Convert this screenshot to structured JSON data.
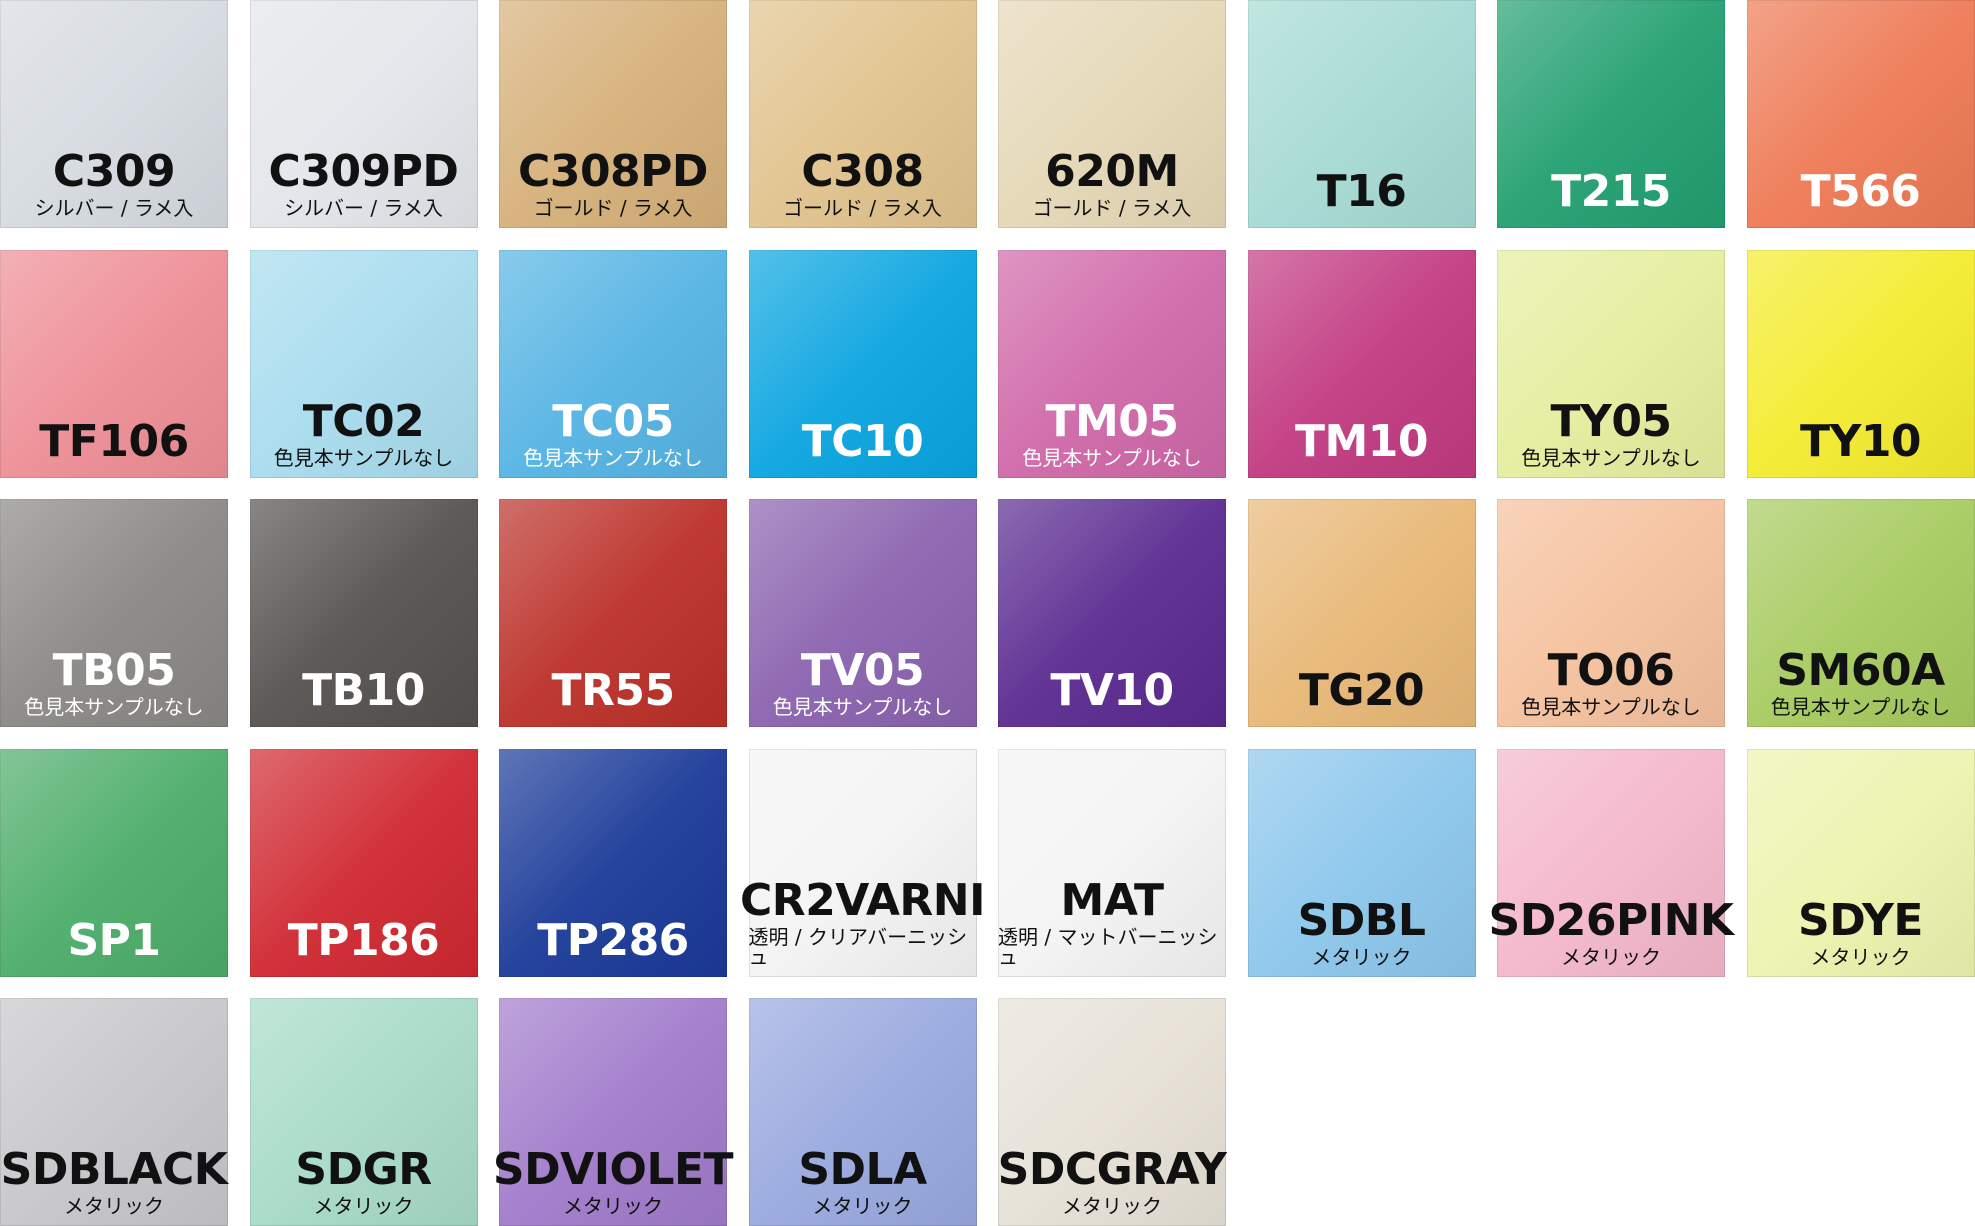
{
  "swatches": [
    {
      "code": "C309",
      "sub": "シルバー / ラメ入",
      "color": "#d6dbe1",
      "text_color": "#111111"
    },
    {
      "code": "C309PD",
      "sub": "シルバー / ラメ入",
      "color": "#e3e6ea",
      "text_color": "#111111"
    },
    {
      "code": "C308PD",
      "sub": "ゴールド / ラメ入",
      "color": "#d6b079",
      "text_color": "#111111"
    },
    {
      "code": "C308",
      "sub": "ゴールド / ラメ入",
      "color": "#e1c38d",
      "text_color": "#111111"
    },
    {
      "code": "620M",
      "sub": "ゴールド / ラメ入",
      "color": "#e5d8b7",
      "text_color": "#111111"
    },
    {
      "code": "T16",
      "color": "#a6dbd3",
      "text_color": "#111111"
    },
    {
      "code": "T215",
      "color": "#22a070",
      "text_color": "#ffffff"
    },
    {
      "code": "T566",
      "color": "#ee7a55",
      "text_color": "#ffffff"
    },
    {
      "code": "TF106",
      "color": "#ee8e96",
      "text_color": "#111111"
    },
    {
      "code": "TC02",
      "sub": "色見本サンプルなし",
      "color": "#a8dcee",
      "text_color": "#111111"
    },
    {
      "code": "TC05",
      "sub": "色見本サンプルなし",
      "color": "#55b4e4",
      "text_color": "#ffffff"
    },
    {
      "code": "TC10",
      "color": "#0aa5e0",
      "text_color": "#ffffff"
    },
    {
      "code": "TM05",
      "sub": "色見本サンプルなし",
      "color": "#d068a9",
      "text_color": "#ffffff"
    },
    {
      "code": "TM10",
      "color": "#c23a82",
      "text_color": "#ffffff"
    },
    {
      "code": "TY05",
      "sub": "色見本サンプルなし",
      "color": "#e5ee9e",
      "text_color": "#111111"
    },
    {
      "code": "TY10",
      "color": "#f4ec2e",
      "text_color": "#111111"
    },
    {
      "code": "TB05",
      "sub": "色見本サンプルなし",
      "color": "#8a8885",
      "text_color": "#ffffff"
    },
    {
      "code": "TB10",
      "color": "#55514e",
      "text_color": "#ffffff"
    },
    {
      "code": "TR55",
      "color": "#bb3028",
      "text_color": "#ffffff"
    },
    {
      "code": "TV05",
      "sub": "色見本サンプルなし",
      "color": "#8a62ae",
      "text_color": "#ffffff"
    },
    {
      "code": "TV10",
      "color": "#5a2a90",
      "text_color": "#ffffff"
    },
    {
      "code": "TG20",
      "color": "#e8b877",
      "text_color": "#111111"
    },
    {
      "code": "TO06",
      "sub": "色見本サンプルなし",
      "color": "#f5c19d",
      "text_color": "#111111"
    },
    {
      "code": "SM60A",
      "sub": "色見本サンプルなし",
      "color": "#a7cb5f",
      "text_color": "#111111"
    },
    {
      "code": "SP1",
      "color": "#4cad69",
      "text_color": "#ffffff"
    },
    {
      "code": "TP186",
      "color": "#d02830",
      "text_color": "#ffffff"
    },
    {
      "code": "TP286",
      "color": "#1a3a98",
      "text_color": "#ffffff"
    },
    {
      "code": "CR2VARNI",
      "sub": "透明 / クリアバーニッシュ",
      "color": "#f4f4f4",
      "text_color": "#111111"
    },
    {
      "code": "MAT",
      "sub": "透明 / マットバーニッシュ",
      "color": "#f4f4f4",
      "text_color": "#111111"
    },
    {
      "code": "SDBL",
      "sub": "メタリック",
      "color": "#8cc7ec",
      "text_color": "#111111"
    },
    {
      "code": "SD26PINK",
      "sub": "メタリック",
      "color": "#f4b7cb",
      "text_color": "#111111"
    },
    {
      "code": "SDYE",
      "sub": "メタリック",
      "color": "#edf4ae",
      "text_color": "#111111"
    },
    {
      "code": "SDBLACK",
      "sub": "メタリック",
      "color": "#c7c7cb",
      "text_color": "#111111"
    },
    {
      "code": "SDGR",
      "sub": "メタリック",
      "color": "#a7dbc7",
      "text_color": "#111111"
    },
    {
      "code": "SDVIOLET",
      "sub": "メタリック",
      "color": "#a17bcb",
      "text_color": "#111111"
    },
    {
      "code": "SDLA",
      "sub": "メタリック",
      "color": "#99a9df",
      "text_color": "#111111"
    },
    {
      "code": "SDCGRAY",
      "sub": "メタリック",
      "color": "#e7e1d7",
      "text_color": "#111111"
    }
  ]
}
